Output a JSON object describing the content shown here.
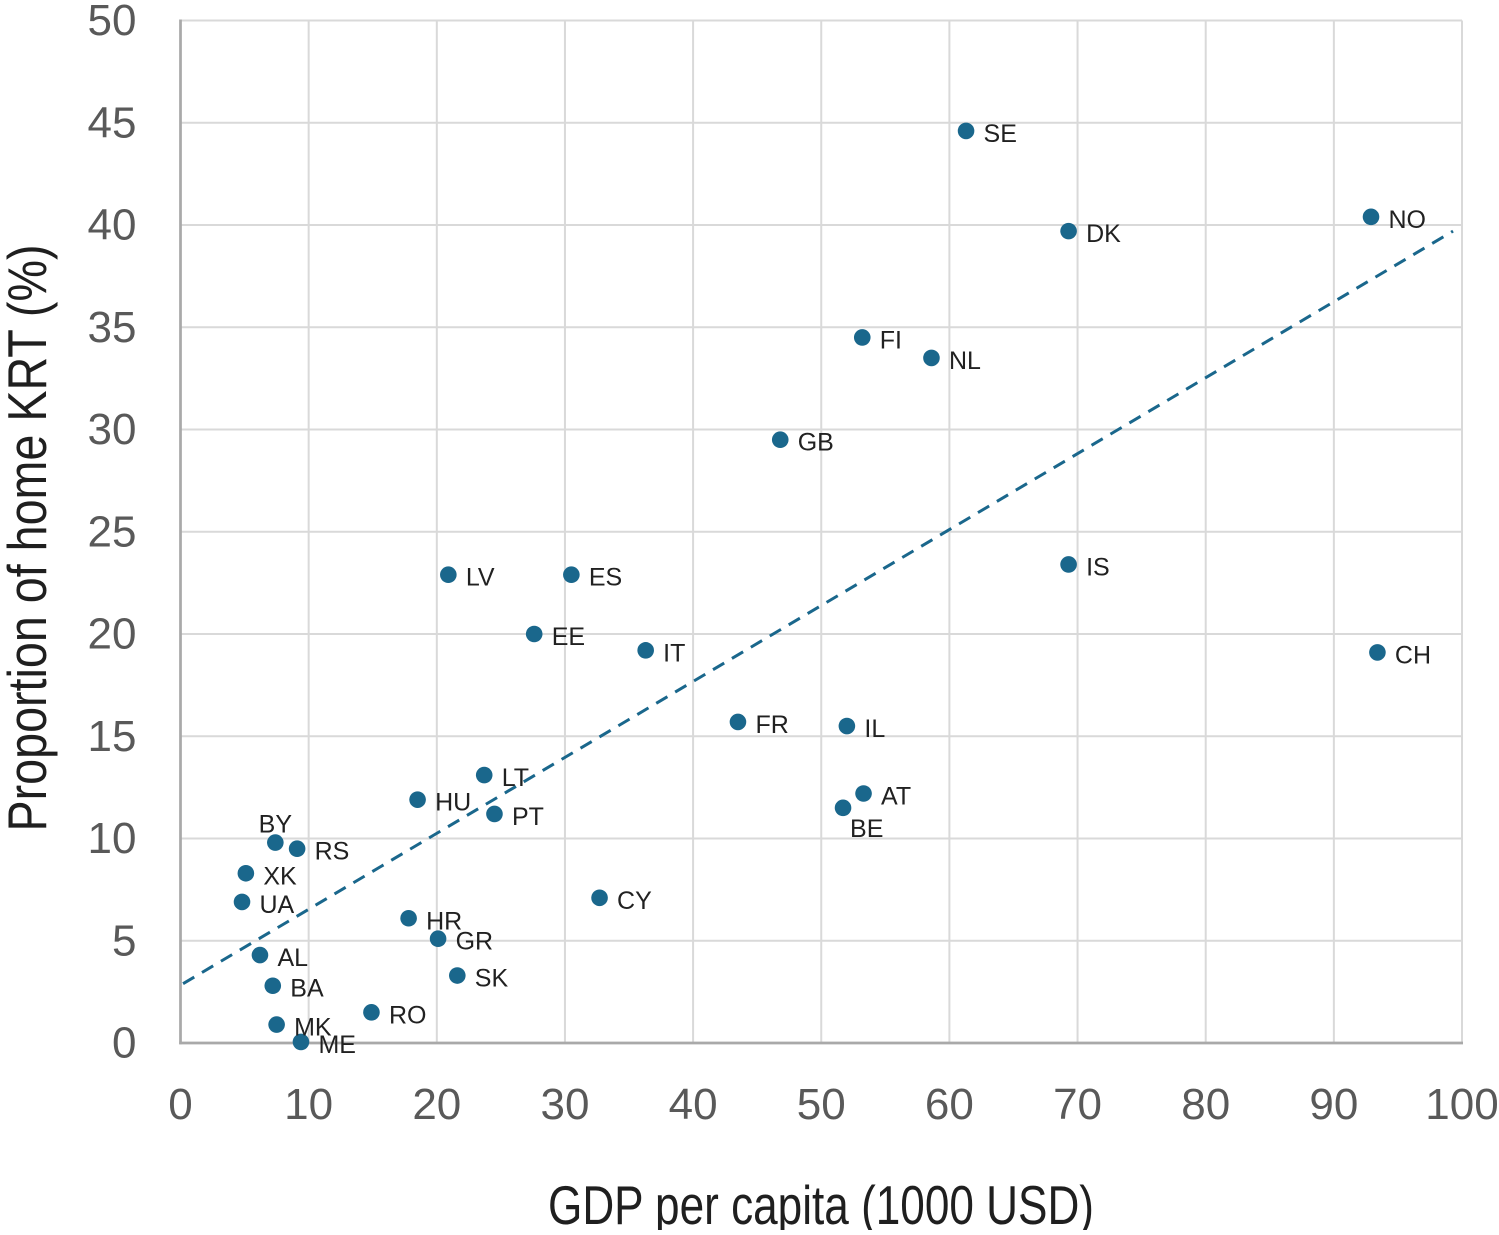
{
  "chart_data": {
    "type": "scatter",
    "title": "",
    "xlabel": "GDP per capita (1000 USD)",
    "ylabel": "Proportion of home KRT (%)",
    "xlim": [
      0,
      100
    ],
    "ylim": [
      0,
      50
    ],
    "x_ticks": [
      0,
      10,
      20,
      30,
      40,
      50,
      60,
      70,
      80,
      90,
      100
    ],
    "y_ticks": [
      0,
      5,
      10,
      15,
      20,
      25,
      30,
      35,
      40,
      45,
      50
    ],
    "grid": true,
    "legend_position": "none",
    "colors": {
      "marker": "#1A678C",
      "trendline": "#1A678C",
      "gridline": "#d9d9d9",
      "axis_line": "#a9a9a9",
      "tick_label": "#595959",
      "axis_title": "#1f1f1f",
      "point_label": "#212121",
      "background": "#ffffff"
    },
    "trendline": {
      "type": "linear",
      "style": "dashed",
      "x_start": 0.2,
      "y_start": 2.9,
      "x_end": 99.3,
      "y_end": 39.7
    },
    "points": [
      {
        "label": "SE",
        "x": 61.3,
        "y": 44.6,
        "label_pos": "right"
      },
      {
        "label": "NO",
        "x": 92.9,
        "y": 40.4,
        "label_pos": "right"
      },
      {
        "label": "DK",
        "x": 69.3,
        "y": 39.7,
        "label_pos": "right"
      },
      {
        "label": "FI",
        "x": 53.2,
        "y": 34.5,
        "label_pos": "right"
      },
      {
        "label": "NL",
        "x": 58.6,
        "y": 33.5,
        "label_pos": "right"
      },
      {
        "label": "GB",
        "x": 46.8,
        "y": 29.5,
        "label_pos": "right"
      },
      {
        "label": "IS",
        "x": 69.3,
        "y": 23.4,
        "label_pos": "right"
      },
      {
        "label": "LV",
        "x": 20.9,
        "y": 22.9,
        "label_pos": "right"
      },
      {
        "label": "ES",
        "x": 30.5,
        "y": 22.9,
        "label_pos": "right"
      },
      {
        "label": "EE",
        "x": 27.6,
        "y": 20.0,
        "label_pos": "right"
      },
      {
        "label": "IT",
        "x": 36.3,
        "y": 19.2,
        "label_pos": "right"
      },
      {
        "label": "CH",
        "x": 93.4,
        "y": 19.1,
        "label_pos": "right"
      },
      {
        "label": "FR",
        "x": 43.5,
        "y": 15.7,
        "label_pos": "right"
      },
      {
        "label": "IL",
        "x": 52.0,
        "y": 15.5,
        "label_pos": "right"
      },
      {
        "label": "LT",
        "x": 23.7,
        "y": 13.1,
        "label_pos": "right"
      },
      {
        "label": "AT",
        "x": 53.3,
        "y": 12.2,
        "label_pos": "right"
      },
      {
        "label": "HU",
        "x": 18.5,
        "y": 11.9,
        "label_pos": "right"
      },
      {
        "label": "BE",
        "x": 51.7,
        "y": 11.5,
        "label_pos": "below"
      },
      {
        "label": "PT",
        "x": 24.5,
        "y": 11.2,
        "label_pos": "right"
      },
      {
        "label": "BY",
        "x": 7.4,
        "y": 9.8,
        "label_pos": "above"
      },
      {
        "label": "RS",
        "x": 9.1,
        "y": 9.5,
        "label_pos": "right"
      },
      {
        "label": "XK",
        "x": 5.1,
        "y": 8.3,
        "label_pos": "right"
      },
      {
        "label": "UA",
        "x": 4.8,
        "y": 6.9,
        "label_pos": "right"
      },
      {
        "label": "CY",
        "x": 32.7,
        "y": 7.1,
        "label_pos": "right"
      },
      {
        "label": "HR",
        "x": 17.8,
        "y": 6.1,
        "label_pos": "right"
      },
      {
        "label": "GR",
        "x": 20.1,
        "y": 5.1,
        "label_pos": "right"
      },
      {
        "label": "AL",
        "x": 6.2,
        "y": 4.3,
        "label_pos": "right"
      },
      {
        "label": "SK",
        "x": 21.6,
        "y": 3.3,
        "label_pos": "right"
      },
      {
        "label": "BA",
        "x": 7.2,
        "y": 2.8,
        "label_pos": "right"
      },
      {
        "label": "RO",
        "x": 14.9,
        "y": 1.5,
        "label_pos": "right"
      },
      {
        "label": "MK",
        "x": 7.5,
        "y": 0.9,
        "label_pos": "right"
      },
      {
        "label": "ME",
        "x": 9.4,
        "y": 0.05,
        "label_pos": "right"
      }
    ]
  }
}
